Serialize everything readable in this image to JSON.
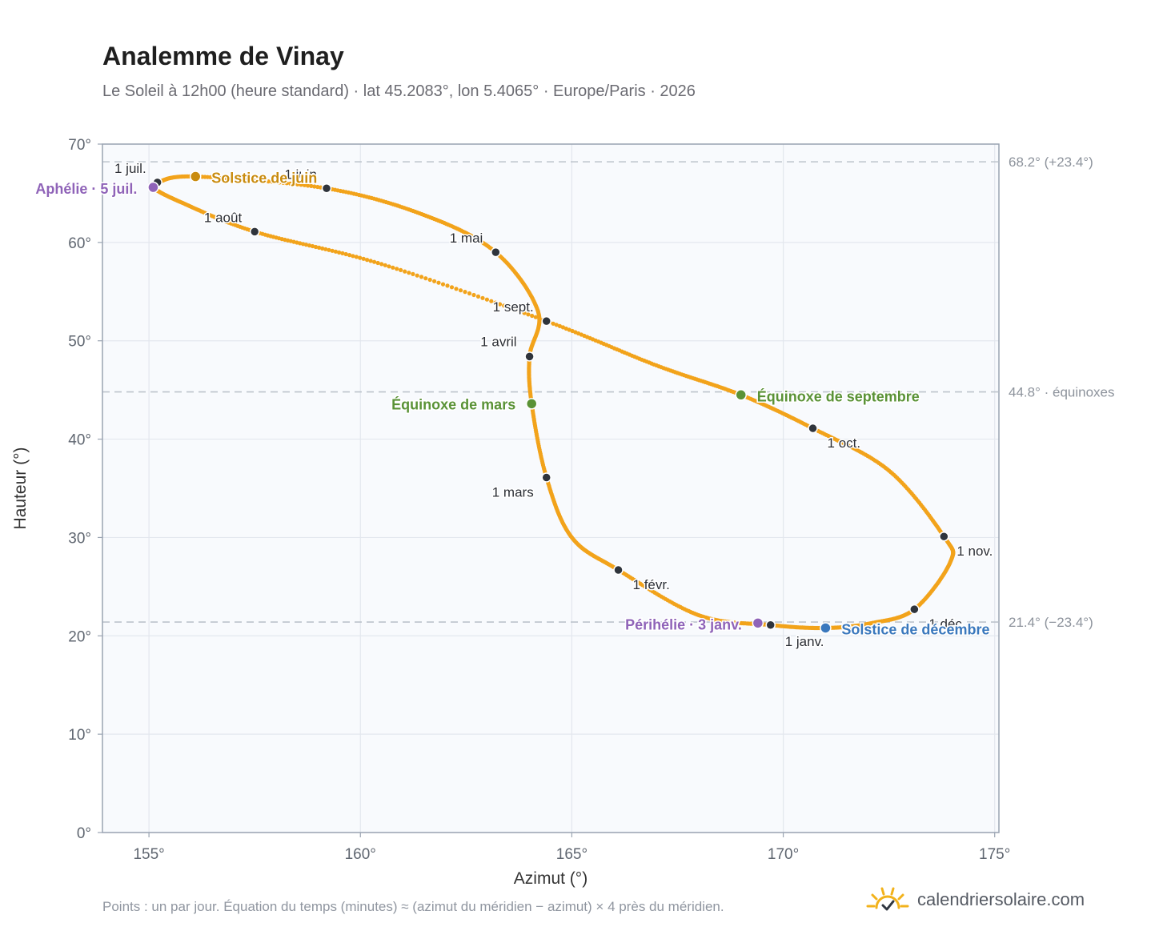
{
  "title": "Analemme de Vinay",
  "subtitle": "Le Soleil à 12h00 (heure standard) · lat 45.2083°, lon 5.4065° · Europe/Paris · 2026",
  "footnote": "Points : un par jour. Équation du temps (minutes) ≈ (azimut du méridien − azimut) × 4 près du méridien.",
  "brand": {
    "name": "calendriersolaire.com",
    "icon": "sun-check-icon"
  },
  "chart_data": {
    "type": "scatter",
    "xlabel": "Azimut (°)",
    "ylabel": "Hauteur (°)",
    "xlim": [
      153.9,
      175.1
    ],
    "ylim": [
      0,
      70
    ],
    "x_ticks": [
      155,
      160,
      165,
      170,
      175
    ],
    "y_ticks": [
      0,
      10,
      20,
      30,
      40,
      50,
      60,
      70
    ],
    "x_tick_labels": [
      "155°",
      "160°",
      "165°",
      "170°",
      "175°"
    ],
    "y_tick_labels": [
      "0°",
      "10°",
      "20°",
      "30°",
      "40°",
      "50°",
      "60°",
      "70°"
    ],
    "grid": true,
    "reference_lines": [
      {
        "y": 68.2,
        "label": "68.2° (+23.4°)"
      },
      {
        "y": 44.8,
        "label": "44.8° · équinoxes"
      },
      {
        "y": 21.4,
        "label": "21.4° (−23.4°)"
      }
    ],
    "daily_series": {
      "description": "un point par jour",
      "color": "#f2a31b",
      "path": [
        [
          171.0,
          20.8
        ],
        [
          169.7,
          21.1
        ],
        [
          168.0,
          22.1
        ],
        [
          166.1,
          26.7
        ],
        [
          165.0,
          30.0
        ],
        [
          164.4,
          36.1
        ],
        [
          164.05,
          43.6
        ],
        [
          164.0,
          48.4
        ],
        [
          164.2,
          53.0
        ],
        [
          163.2,
          59.0
        ],
        [
          161.5,
          62.8
        ],
        [
          159.2,
          65.5
        ],
        [
          156.1,
          66.7
        ],
        [
          155.2,
          66.1
        ],
        [
          155.1,
          65.6
        ],
        [
          155.7,
          64.2
        ],
        [
          157.5,
          61.1
        ],
        [
          160.5,
          57.8
        ],
        [
          164.4,
          52.0
        ],
        [
          167.0,
          47.5
        ],
        [
          169.0,
          44.5
        ],
        [
          170.7,
          41.1
        ],
        [
          172.5,
          36.8
        ],
        [
          173.8,
          30.1
        ],
        [
          173.95,
          27.5
        ],
        [
          173.1,
          22.7
        ],
        [
          172.1,
          21.3
        ],
        [
          171.0,
          20.8
        ]
      ]
    },
    "month_markers": [
      {
        "label": "1 janv.",
        "x": 169.7,
        "y": 21.1
      },
      {
        "label": "1 févr.",
        "x": 166.1,
        "y": 26.7
      },
      {
        "label": "1 mars",
        "x": 164.4,
        "y": 36.1
      },
      {
        "label": "1 avril",
        "x": 164.0,
        "y": 48.4
      },
      {
        "label": "1 mai",
        "x": 163.2,
        "y": 59.0
      },
      {
        "label": "1 juin",
        "x": 159.2,
        "y": 65.5
      },
      {
        "label": "1 juil.",
        "x": 155.2,
        "y": 66.1
      },
      {
        "label": "1 août",
        "x": 157.5,
        "y": 61.1
      },
      {
        "label": "1 sept.",
        "x": 164.4,
        "y": 52.0
      },
      {
        "label": "1 oct.",
        "x": 170.7,
        "y": 41.1
      },
      {
        "label": "1 nov.",
        "x": 173.8,
        "y": 30.1
      },
      {
        "label": "1 déc.",
        "x": 173.1,
        "y": 22.7
      }
    ],
    "events": [
      {
        "label": "Solstice de juin",
        "x": 156.1,
        "y": 66.7,
        "color": "#c98c10"
      },
      {
        "label": "Aphélie · 5 juil.",
        "x": 155.1,
        "y": 65.6,
        "color": "#8f63b8"
      },
      {
        "label": "Équinoxe de mars",
        "x": 164.05,
        "y": 43.6,
        "color": "#5a9236"
      },
      {
        "label": "Équinoxe de septembre",
        "x": 169.0,
        "y": 44.5,
        "color": "#5a9236"
      },
      {
        "label": "Périhélie · 3 janv.",
        "x": 169.4,
        "y": 21.3,
        "color": "#8f63b8"
      },
      {
        "label": "Solstice de décembre",
        "x": 171.0,
        "y": 20.8,
        "color": "#3a78bd"
      }
    ]
  }
}
